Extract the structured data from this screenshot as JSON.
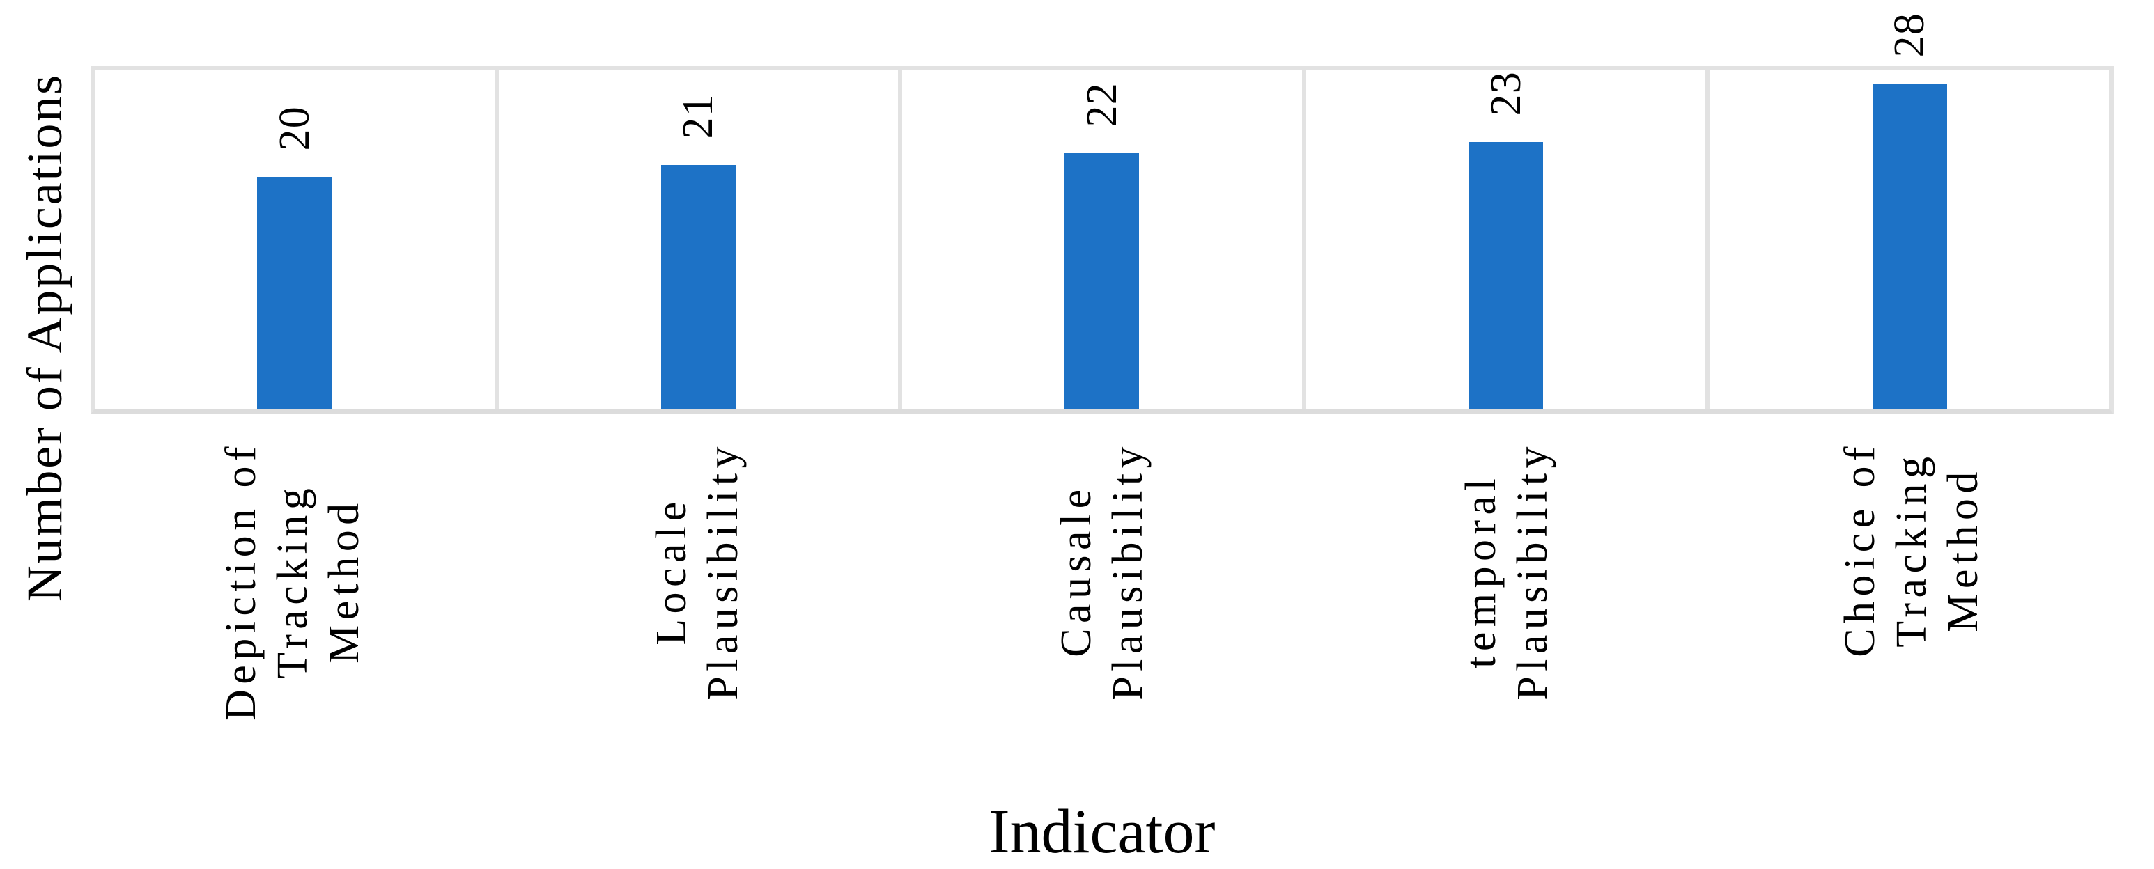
{
  "chart_data": {
    "type": "bar",
    "title": "",
    "xlabel": "Indicator",
    "ylabel": "Number of Applications",
    "categories": [
      [
        "Depiction of",
        "Tracking",
        "Method"
      ],
      [
        "Locale",
        "Plausibility"
      ],
      [
        "Causale",
        "Plausibility"
      ],
      [
        "temporal",
        "Plausibility"
      ],
      [
        "Choice of",
        "Tracking",
        "Method"
      ]
    ],
    "categories_text": [
      "Depiction of Tracking Method",
      "Locale Plausibility",
      "Causale Plausibility",
      "temporal Plausibility",
      "Choice of Tracking Method"
    ],
    "values": [
      20,
      21,
      22,
      23,
      28
    ],
    "value_labels_shown": true,
    "ylim": [
      0,
      30
    ],
    "y_ticks_shown": false,
    "legend": "none",
    "grid": "vertical-panel-separators",
    "label_rotation_deg": 90,
    "bar_color": "#1d72c6",
    "grid_color": "#e2e2e2",
    "axis_line_color": "#dcdcdc",
    "text_color": "#000000",
    "background_color": "#ffffff"
  }
}
